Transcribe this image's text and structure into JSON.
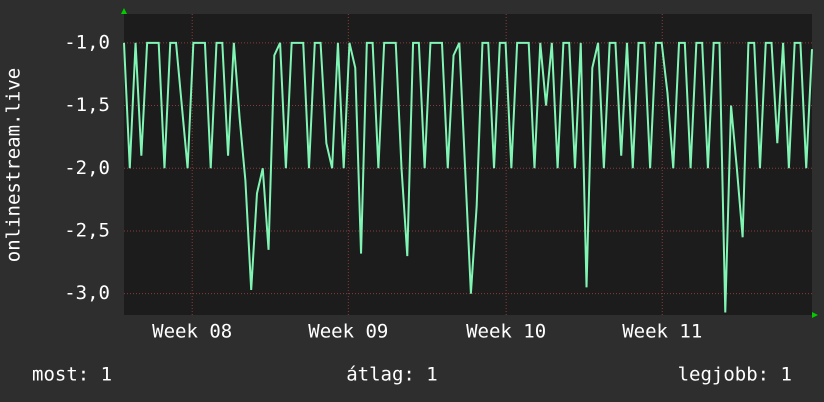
{
  "chart_data": {
    "type": "line",
    "y_label": "onlinestream.live",
    "ylim": [
      -3.17,
      -0.77
    ],
    "yticks": [
      {
        "value": -1,
        "label": "-1,0"
      },
      {
        "value": -1.5,
        "label": "-1,5"
      },
      {
        "value": -2,
        "label": "-2,0"
      },
      {
        "value": -2.5,
        "label": "-2,5"
      },
      {
        "value": -3,
        "label": "-3,0"
      }
    ],
    "xlim": [
      0,
      119
    ],
    "xticks": [
      {
        "value": 11.8,
        "label": "Week 08"
      },
      {
        "value": 38.8,
        "label": "Week 09"
      },
      {
        "value": 66.1,
        "label": "Week 10"
      },
      {
        "value": 93.1,
        "label": "Week 11"
      }
    ],
    "grid": true,
    "color": "#80f5b4",
    "values": [
      -1,
      -2,
      -1,
      -1.9,
      -1,
      -1,
      -1,
      -2,
      -1,
      -1,
      -1.5,
      -2,
      -1,
      -1,
      -1,
      -2,
      -1,
      -1,
      -1.9,
      -1,
      -1.6,
      -2.1,
      -2.97,
      -2.2,
      -2,
      -2.65,
      -1.1,
      -1,
      -2,
      -1,
      -1,
      -1,
      -2,
      -1,
      -1,
      -1.8,
      -2,
      -1,
      -2,
      -1,
      -1.2,
      -2.68,
      -1,
      -1,
      -2,
      -1,
      -1,
      -1,
      -2,
      -2.7,
      -1,
      -1,
      -2,
      -1,
      -1,
      -1,
      -2,
      -1.1,
      -1,
      -2,
      -3,
      -2.3,
      -1,
      -1,
      -2,
      -1,
      -1,
      -2,
      -1,
      -1,
      -1,
      -2,
      -1,
      -1.5,
      -1,
      -2,
      -1,
      -1,
      -2,
      -1,
      -2.95,
      -1.2,
      -1,
      -2,
      -1,
      -1,
      -1.9,
      -1,
      -2,
      -1,
      -1,
      -2,
      -1,
      -1,
      -1.4,
      -2,
      -1,
      -1,
      -2,
      -1,
      -1,
      -2,
      -1,
      -1,
      -3.15,
      -1.5,
      -2,
      -2.55,
      -1,
      -1,
      -2,
      -1,
      -1,
      -1.8,
      -1,
      -2,
      -1,
      -1,
      -2,
      -1.05
    ],
    "legend": [
      {
        "label": "most: 1"
      },
      {
        "label": "átlag: 1"
      },
      {
        "label": "legjobb: 1"
      }
    ]
  }
}
